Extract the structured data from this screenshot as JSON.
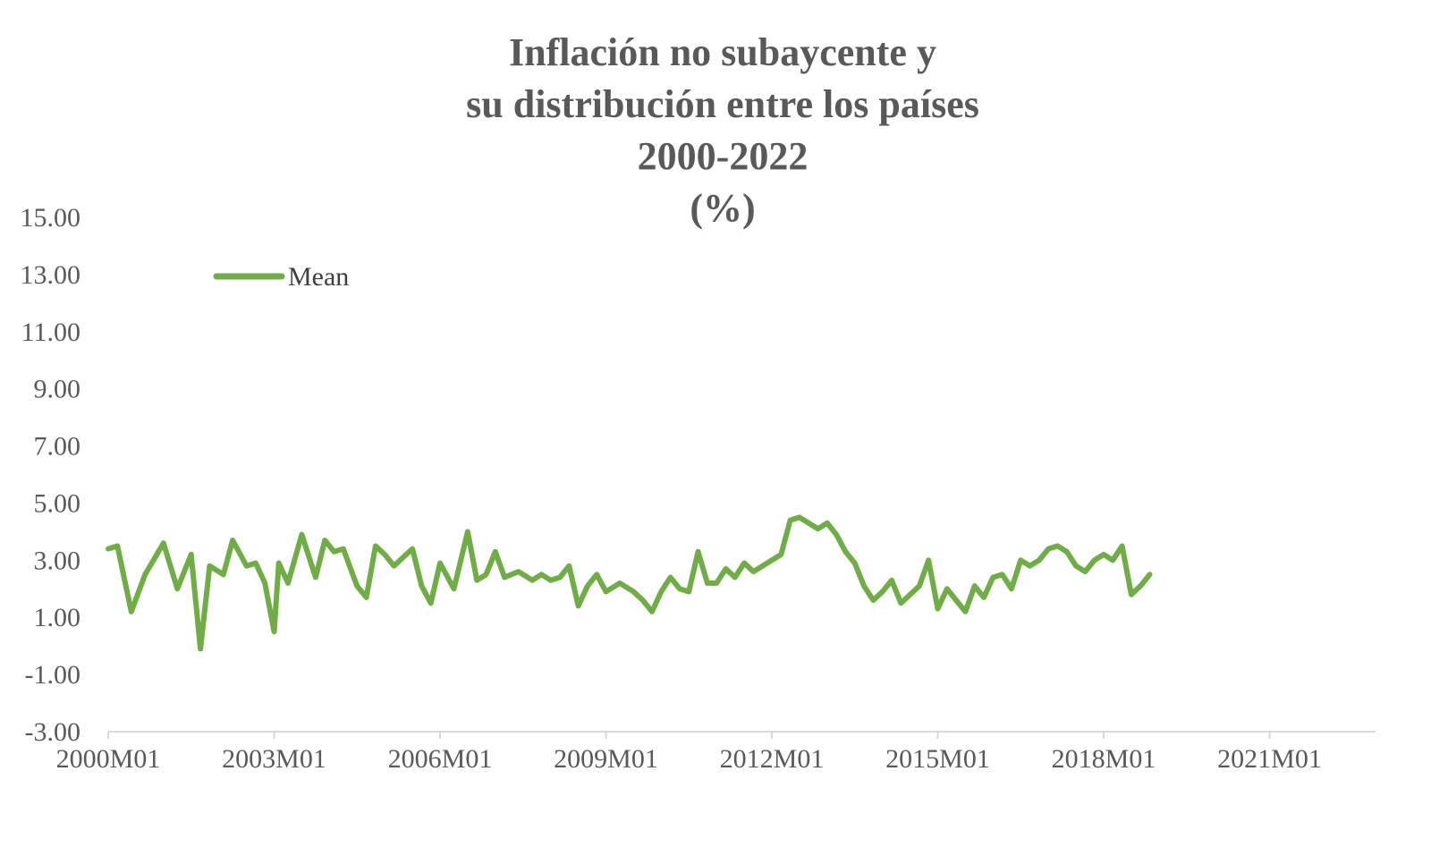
{
  "chart_data": {
    "type": "line",
    "title": [
      "Inflación no subaycente y",
      "su distribución entre los países",
      "2000-2022",
      "(%)"
    ],
    "xlabel": "",
    "ylabel": "",
    "x_tick_labels": [
      "2000M01",
      "2003M01",
      "2006M01",
      "2009M01",
      "2012M01",
      "2015M01",
      "2018M01",
      "2021M01"
    ],
    "y_tick_labels": [
      "15.00",
      "13.00",
      "11.00",
      "9.00",
      "7.00",
      "5.00",
      "3.00",
      "1.00",
      "-1.00",
      "-3.00"
    ],
    "ylim": [
      -3,
      15
    ],
    "x_range": [
      "2000M01",
      "2022M12"
    ],
    "legend_position": "top-left",
    "grid": false,
    "series": [
      {
        "name": "Mean",
        "color": "#70AD47",
        "points": [
          [
            "2000M01",
            3.4
          ],
          [
            "2000M03",
            3.5
          ],
          [
            "2000M06",
            1.2
          ],
          [
            "2000M09",
            2.5
          ],
          [
            "2001M01",
            3.6
          ],
          [
            "2001M04",
            2.0
          ],
          [
            "2001M07",
            3.2
          ],
          [
            "2001M09",
            -0.1
          ],
          [
            "2001M11",
            2.8
          ],
          [
            "2002M02",
            2.5
          ],
          [
            "2002M04",
            3.7
          ],
          [
            "2002M07",
            2.8
          ],
          [
            "2002M09",
            2.9
          ],
          [
            "2002M11",
            2.2
          ],
          [
            "2003M01",
            0.5
          ],
          [
            "2003M02",
            2.9
          ],
          [
            "2003M04",
            2.2
          ],
          [
            "2003M07",
            3.9
          ],
          [
            "2003M10",
            2.4
          ],
          [
            "2003M12",
            3.7
          ],
          [
            "2004M02",
            3.3
          ],
          [
            "2004M04",
            3.4
          ],
          [
            "2004M07",
            2.1
          ],
          [
            "2004M09",
            1.7
          ],
          [
            "2004M11",
            3.5
          ],
          [
            "2005M01",
            3.2
          ],
          [
            "2005M03",
            2.8
          ],
          [
            "2005M05",
            3.1
          ],
          [
            "2005M07",
            3.4
          ],
          [
            "2005M09",
            2.1
          ],
          [
            "2005M11",
            1.5
          ],
          [
            "2006M01",
            2.9
          ],
          [
            "2006M04",
            2.0
          ],
          [
            "2006M07",
            4.0
          ],
          [
            "2006M09",
            2.3
          ],
          [
            "2006M11",
            2.5
          ],
          [
            "2007M01",
            3.3
          ],
          [
            "2007M03",
            2.4
          ],
          [
            "2007M06",
            2.6
          ],
          [
            "2007M09",
            2.3
          ],
          [
            "2007M11",
            2.5
          ],
          [
            "2008M01",
            2.3
          ],
          [
            "2008M03",
            2.4
          ],
          [
            "2008M05",
            2.8
          ],
          [
            "2008M07",
            1.4
          ],
          [
            "2008M09",
            2.1
          ],
          [
            "2008M11",
            2.5
          ],
          [
            "2009M01",
            1.9
          ],
          [
            "2009M04",
            2.2
          ],
          [
            "2009M07",
            1.9
          ],
          [
            "2009M09",
            1.6
          ],
          [
            "2009M11",
            1.2
          ],
          [
            "2010M01",
            1.9
          ],
          [
            "2010M03",
            2.4
          ],
          [
            "2010M05",
            2.0
          ],
          [
            "2010M07",
            1.9
          ],
          [
            "2010M09",
            3.3
          ],
          [
            "2010M11",
            2.2
          ],
          [
            "2011M01",
            2.2
          ],
          [
            "2011M03",
            2.7
          ],
          [
            "2011M05",
            2.4
          ],
          [
            "2011M07",
            2.9
          ],
          [
            "2011M09",
            2.6
          ],
          [
            "2011M11",
            2.8
          ],
          [
            "2012M01",
            3.0
          ],
          [
            "2012M03",
            3.2
          ],
          [
            "2012M05",
            4.4
          ],
          [
            "2012M07",
            4.5
          ],
          [
            "2012M09",
            4.3
          ],
          [
            "2012M11",
            4.1
          ],
          [
            "2013M01",
            4.3
          ],
          [
            "2013M03",
            3.9
          ],
          [
            "2013M05",
            3.3
          ],
          [
            "2013M07",
            2.9
          ],
          [
            "2013M09",
            2.1
          ],
          [
            "2013M11",
            1.6
          ],
          [
            "2014M01",
            1.9
          ],
          [
            "2014M03",
            2.3
          ],
          [
            "2014M05",
            1.5
          ],
          [
            "2014M07",
            1.8
          ],
          [
            "2014M09",
            2.1
          ],
          [
            "2014M11",
            3.0
          ],
          [
            "2015M01",
            1.3
          ],
          [
            "2015M03",
            2.0
          ],
          [
            "2015M05",
            1.6
          ],
          [
            "2015M07",
            1.2
          ],
          [
            "2015M09",
            2.1
          ],
          [
            "2015M11",
            1.7
          ],
          [
            "2016M01",
            2.4
          ],
          [
            "2016M03",
            2.5
          ],
          [
            "2016M05",
            2.0
          ],
          [
            "2016M07",
            3.0
          ],
          [
            "2016M09",
            2.8
          ],
          [
            "2016M11",
            3.0
          ],
          [
            "2017M01",
            3.4
          ],
          [
            "2017M03",
            3.5
          ],
          [
            "2017M05",
            3.3
          ],
          [
            "2017M07",
            2.8
          ],
          [
            "2017M09",
            2.6
          ],
          [
            "2017M11",
            3.0
          ],
          [
            "2018M01",
            3.2
          ],
          [
            "2018M03",
            3.0
          ],
          [
            "2018M05",
            3.5
          ],
          [
            "2018M07",
            1.8
          ],
          [
            "2018M09",
            2.1
          ],
          [
            "2018M11",
            2.5
          ]
        ]
      }
    ]
  }
}
